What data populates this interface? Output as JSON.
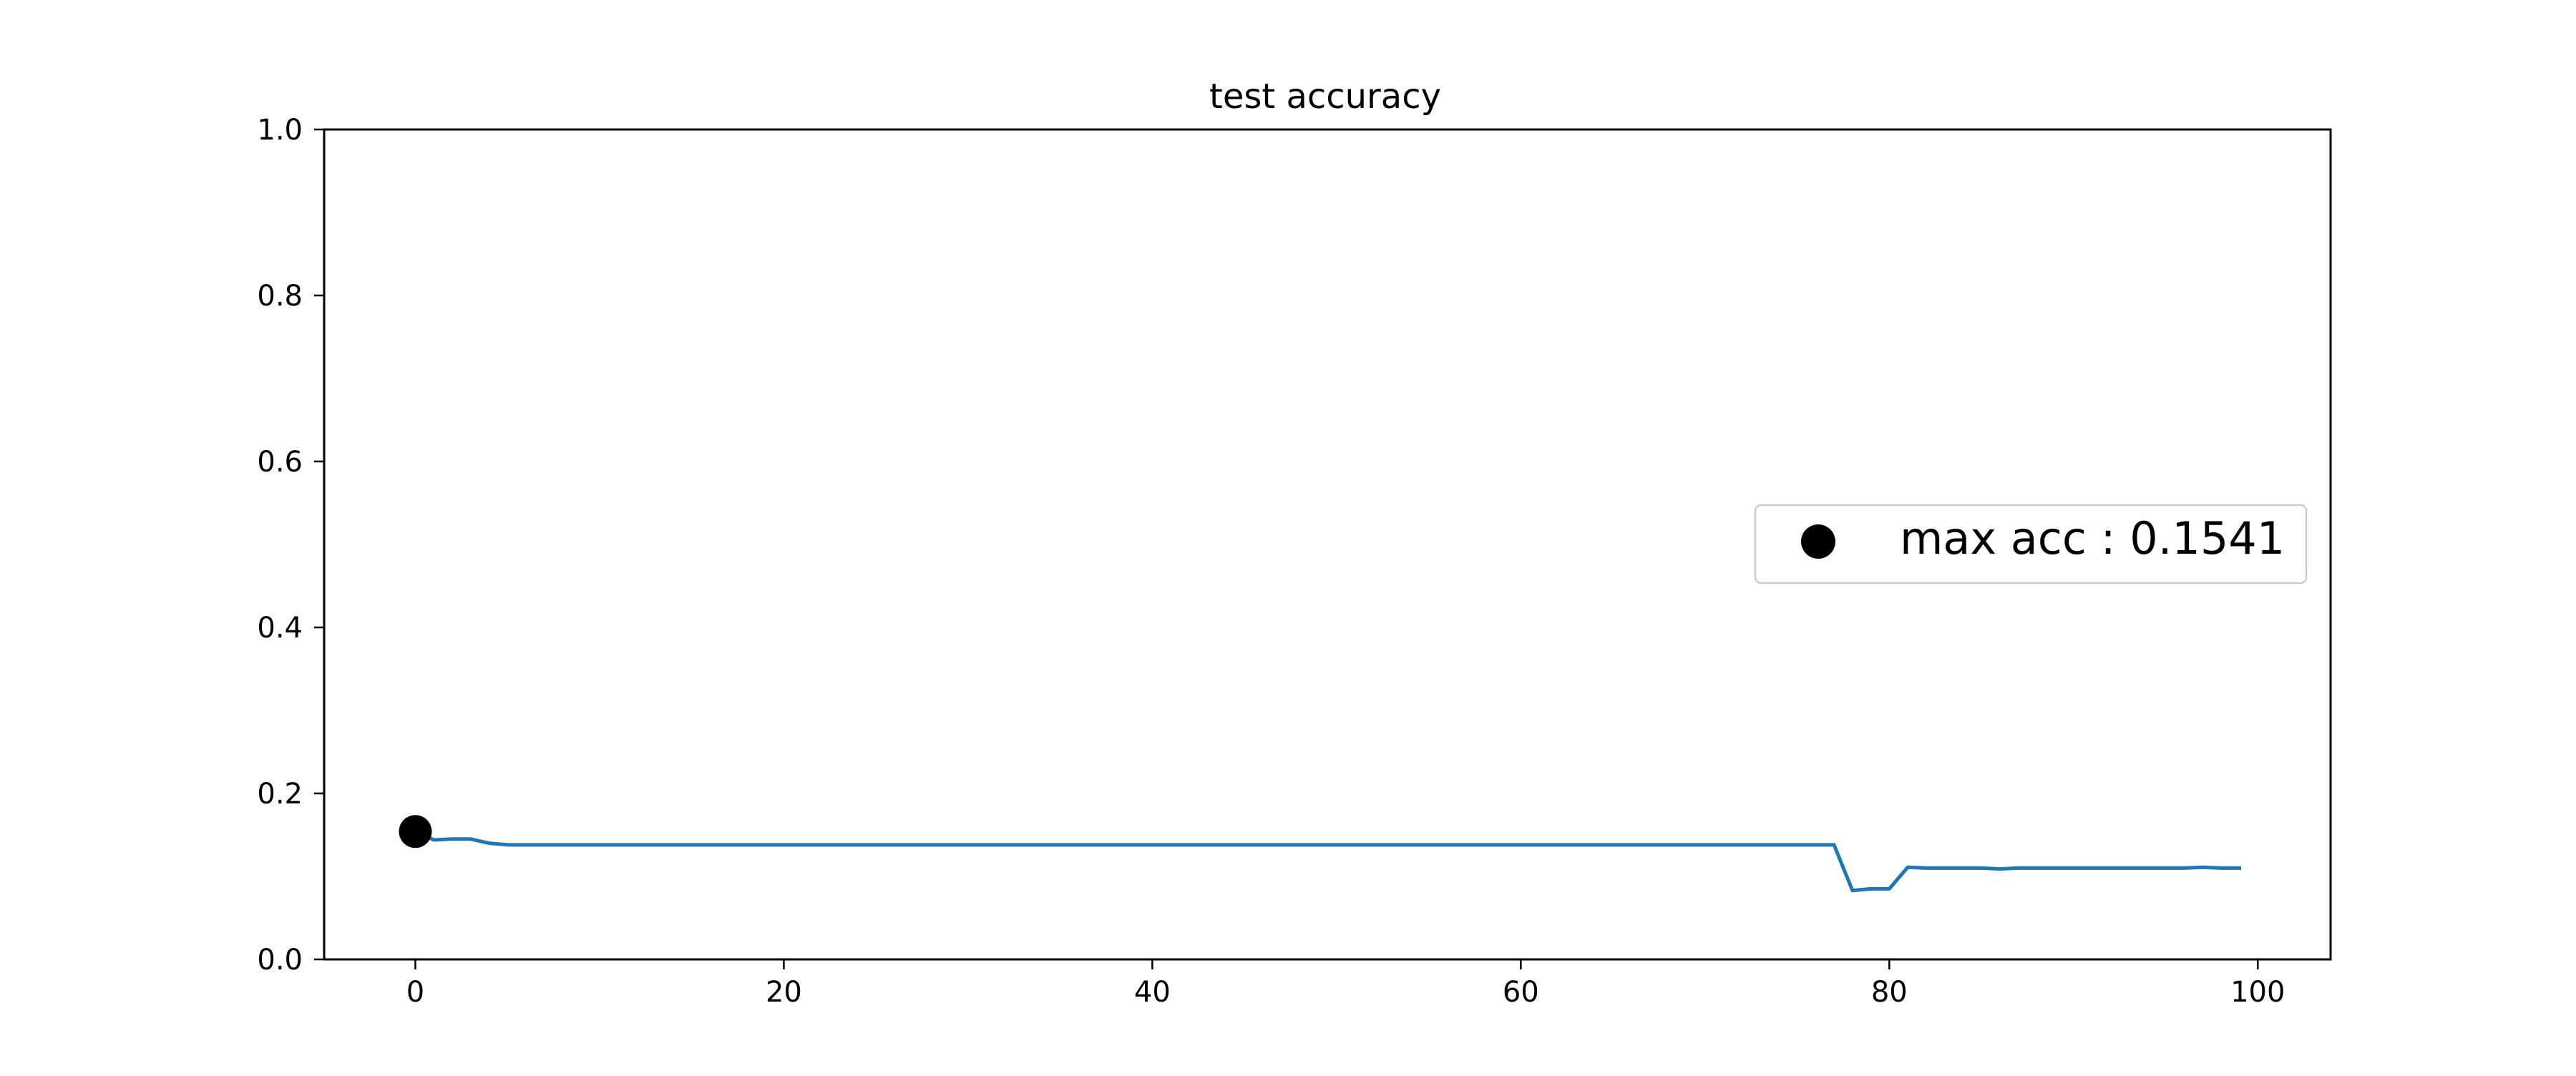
{
  "chart_data": {
    "type": "line",
    "title": "test accuracy",
    "xlabel": "",
    "ylabel": "",
    "xlim": [
      -4.95,
      103.95
    ],
    "ylim": [
      0.0,
      1.0
    ],
    "xticks": [
      0,
      20,
      40,
      60,
      80,
      100
    ],
    "yticks": [
      0.0,
      0.2,
      0.4,
      0.6,
      0.8,
      1.0
    ],
    "xtick_labels": [
      "0",
      "20",
      "40",
      "60",
      "80",
      "100"
    ],
    "ytick_labels": [
      "0.0",
      "0.2",
      "0.4",
      "0.6",
      "0.8",
      "1.0"
    ],
    "grid": false,
    "series": [
      {
        "color": "#1f77b4",
        "x": [
          0,
          1,
          2,
          3,
          4,
          5,
          6,
          7,
          8,
          9,
          10,
          11,
          12,
          13,
          14,
          15,
          16,
          17,
          18,
          19,
          20,
          21,
          22,
          23,
          24,
          25,
          26,
          27,
          28,
          29,
          30,
          31,
          32,
          33,
          34,
          35,
          36,
          37,
          38,
          39,
          40,
          41,
          42,
          43,
          44,
          45,
          46,
          47,
          48,
          49,
          50,
          51,
          52,
          53,
          54,
          55,
          56,
          57,
          58,
          59,
          60,
          61,
          62,
          63,
          64,
          65,
          66,
          67,
          68,
          69,
          70,
          71,
          72,
          73,
          74,
          75,
          76,
          77,
          78,
          79,
          80,
          81,
          82,
          83,
          84,
          85,
          86,
          87,
          88,
          89,
          90,
          91,
          92,
          93,
          94,
          95,
          96,
          97,
          98,
          99
        ],
        "y": [
          0.1541,
          0.144,
          0.145,
          0.145,
          0.14,
          0.138,
          0.138,
          0.138,
          0.138,
          0.138,
          0.138,
          0.138,
          0.138,
          0.138,
          0.138,
          0.138,
          0.138,
          0.138,
          0.138,
          0.138,
          0.138,
          0.138,
          0.138,
          0.138,
          0.138,
          0.138,
          0.138,
          0.138,
          0.138,
          0.138,
          0.138,
          0.138,
          0.138,
          0.138,
          0.138,
          0.138,
          0.138,
          0.138,
          0.138,
          0.138,
          0.138,
          0.138,
          0.138,
          0.138,
          0.138,
          0.138,
          0.138,
          0.138,
          0.138,
          0.138,
          0.138,
          0.138,
          0.138,
          0.138,
          0.138,
          0.138,
          0.138,
          0.138,
          0.138,
          0.138,
          0.138,
          0.138,
          0.138,
          0.138,
          0.138,
          0.138,
          0.138,
          0.138,
          0.138,
          0.138,
          0.138,
          0.138,
          0.138,
          0.138,
          0.138,
          0.138,
          0.138,
          0.138,
          0.083,
          0.085,
          0.085,
          0.111,
          0.11,
          0.11,
          0.11,
          0.11,
          0.109,
          0.11,
          0.11,
          0.11,
          0.11,
          0.11,
          0.11,
          0.11,
          0.11,
          0.11,
          0.11,
          0.111,
          0.11,
          0.11
        ]
      }
    ],
    "marker": {
      "x": 0,
      "y": 0.1541,
      "color": "#000000",
      "label": "max acc : 0.1541"
    },
    "legend": {
      "position": "center-right",
      "entries": [
        "max acc : 0.1541"
      ]
    }
  }
}
